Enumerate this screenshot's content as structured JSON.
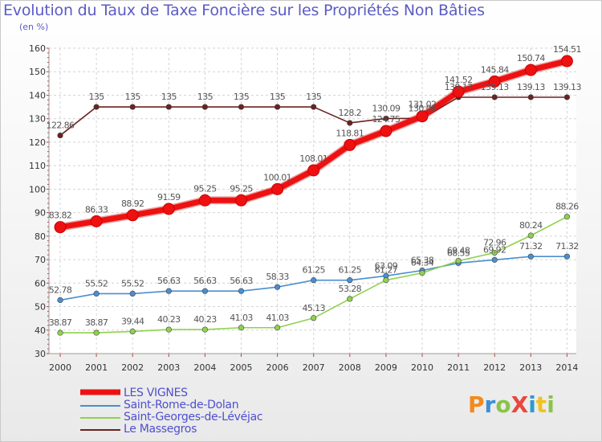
{
  "title": "Evolution du Taux de Taxe Foncière sur les Propriétés Non Bâties",
  "unit": "(en %)",
  "logo": {
    "text": "ProXiti",
    "colors": [
      "#f28a1c",
      "#3a8fd8",
      "#8bc34a",
      "#e8483d",
      "#2e9ad0",
      "#f2c21c",
      "#8bc34a"
    ]
  },
  "chart_data": {
    "type": "line",
    "x": [
      2000,
      2001,
      2002,
      2003,
      2004,
      2005,
      2006,
      2007,
      2008,
      2009,
      2010,
      2011,
      2012,
      2013,
      2014
    ],
    "ylim": [
      30,
      160
    ],
    "yticks": [
      30,
      40,
      50,
      60,
      70,
      80,
      90,
      100,
      110,
      120,
      130,
      140,
      150,
      160
    ],
    "grid": true,
    "series": [
      {
        "name": "LES VIGNES",
        "color": "#ee1111",
        "values": [
          83.82,
          86.33,
          88.92,
          91.59,
          95.25,
          95.25,
          100.01,
          108.01,
          118.81,
          124.75,
          131.02,
          141.52,
          145.84,
          150.74,
          154.51
        ],
        "labels": [
          "83.82",
          "86.33",
          "88.92",
          "91.59",
          "95.25",
          "95.25",
          "100.01",
          "108.01",
          "118.81",
          "124.75",
          "131.02",
          "141.52",
          "145.84",
          "150.74",
          "154.51"
        ]
      },
      {
        "name": "Saint-Rome-de-Dolan",
        "color": "#4a8fcf",
        "values": [
          52.78,
          55.52,
          55.52,
          56.63,
          56.63,
          56.63,
          58.33,
          61.25,
          61.25,
          63.09,
          65.38,
          68.55,
          69.92,
          71.32,
          71.32
        ],
        "labels": [
          "52.78",
          "55.52",
          "55.52",
          "56.63",
          "56.63",
          "56.63",
          "58.33",
          "61.25",
          "61.25",
          "63.09",
          "65.38",
          "68.55",
          "69.92",
          "71.32",
          "71.32"
        ]
      },
      {
        "name": "Saint-Georges-de-Lévéjac",
        "color": "#8fd14f",
        "values": [
          38.87,
          38.87,
          39.44,
          40.23,
          40.23,
          41.03,
          41.03,
          45.13,
          53.28,
          61.27,
          64.34,
          69.48,
          72.96,
          80.24,
          88.26
        ],
        "labels": [
          "38.87",
          "38.87",
          "39.44",
          "40.23",
          "40.23",
          "41.03",
          "41.03",
          "45.13",
          "53.28",
          "61.27",
          "64.34",
          "69.48",
          "72.96",
          "80.24",
          "88.26"
        ]
      },
      {
        "name": "Le Massegros",
        "color": "#6b2222",
        "values": [
          122.86,
          135,
          135,
          135,
          135,
          135,
          135,
          135,
          128.2,
          130.09,
          130.09,
          139.13,
          139.13,
          139.13,
          139.13
        ],
        "labels": [
          "122.86",
          "135",
          "135",
          "135",
          "135",
          "135",
          "135",
          "135",
          "128.2",
          "130.09",
          "130.09",
          "139.13",
          "139.13",
          "139.13",
          "139.13"
        ]
      }
    ]
  }
}
